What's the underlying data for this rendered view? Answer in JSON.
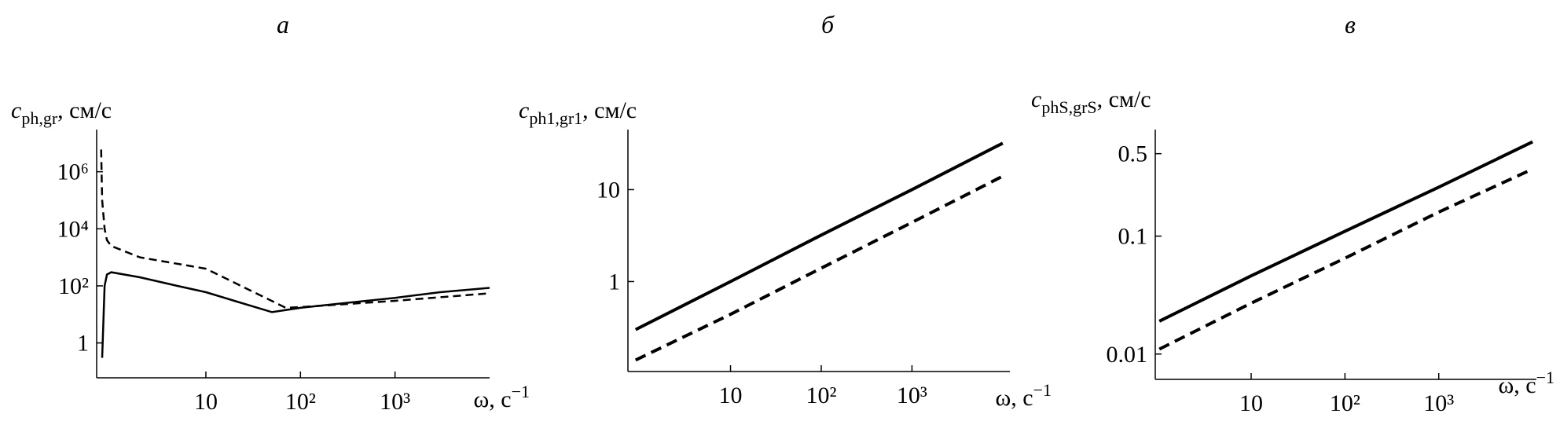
{
  "chart_data": [
    {
      "type": "line",
      "title": "а",
      "ylabel": "c",
      "ylabel_sub": "ph,gr",
      "ylabel_unit": ", см/с",
      "xlabel": "ω, с",
      "xlabel_sup": "−1",
      "xlog": true,
      "ylog": true,
      "grid": false,
      "xlim": [
        0.7,
        10000
      ],
      "ylim": [
        0.06,
        30000000
      ],
      "xticks": [
        10,
        {
          "value": 100,
          "label": "10²"
        },
        {
          "value": 1000,
          "label": "10³"
        }
      ],
      "yticks": [
        1,
        {
          "value": 100,
          "label": "10²"
        },
        {
          "value": 10000,
          "label": "10⁴"
        },
        {
          "value": 1000000,
          "label": "10⁶"
        }
      ],
      "series": [
        {
          "style": "solid",
          "color": "#000000",
          "x": [
            0.8,
            0.85,
            0.9,
            1,
            2,
            5,
            10,
            20,
            50,
            100,
            300,
            1000,
            3000,
            10000
          ],
          "values": [
            0.3,
            100,
            250,
            300,
            200,
            100,
            60,
            30,
            12,
            17,
            25,
            38,
            60,
            85
          ]
        },
        {
          "style": "dashed",
          "color": "#000000",
          "x": [
            0.78,
            0.8,
            0.85,
            0.9,
            1,
            2,
            10,
            70,
            100,
            1000,
            10000
          ],
          "values": [
            6000000,
            100000,
            10000,
            4000,
            2500,
            1000,
            400,
            17,
            18,
            30,
            55
          ]
        }
      ]
    },
    {
      "type": "line",
      "title": "б",
      "ylabel": "c",
      "ylabel_sub": "ph1,gr1",
      "ylabel_unit": ", см/с",
      "xlabel": "ω, с",
      "xlabel_sup": "−1",
      "xlog": true,
      "ylog": true,
      "grid": false,
      "xlim": [
        0.74,
        12000
      ],
      "ylim": [
        0.105,
        45
      ],
      "xticks": [
        10,
        {
          "value": 100,
          "label": "10²"
        },
        {
          "value": 1000,
          "label": "10³"
        }
      ],
      "yticks": [
        1,
        10
      ],
      "series": [
        {
          "style": "solid",
          "color": "#000000",
          "x": [
            0.9,
            10,
            100,
            1000,
            10000
          ],
          "values": [
            0.3,
            1,
            3.2,
            10,
            32
          ]
        },
        {
          "style": "dashed",
          "color": "#000000",
          "x": [
            0.9,
            10,
            100,
            1000,
            10000
          ],
          "values": [
            0.14,
            0.44,
            1.4,
            4.4,
            14
          ]
        }
      ]
    },
    {
      "type": "line",
      "title": "в",
      "ylabel": "c",
      "ylabel_sub": "phS,grS",
      "ylabel_unit": ", см/с",
      "xlabel": "ω, с",
      "xlabel_sup": "−1",
      "xlog": true,
      "ylog": true,
      "grid": false,
      "xlim": [
        0.95,
        11000
      ],
      "ylim": [
        0.0061,
        0.8
      ],
      "xticks": [
        10,
        {
          "value": 100,
          "label": "10²"
        },
        {
          "value": 1000,
          "label": "10³"
        }
      ],
      "yticks": [
        0.01,
        0.1,
        0.5
      ],
      "series": [
        {
          "style": "solid",
          "color": "#000000",
          "x": [
            1.05,
            10,
            100,
            1000,
            10000
          ],
          "values": [
            0.019,
            0.046,
            0.11,
            0.26,
            0.63
          ]
        },
        {
          "style": "dashed",
          "color": "#000000",
          "x": [
            1.05,
            10,
            100,
            1000,
            10000
          ],
          "values": [
            0.011,
            0.027,
            0.065,
            0.16,
            0.37
          ]
        }
      ]
    }
  ]
}
